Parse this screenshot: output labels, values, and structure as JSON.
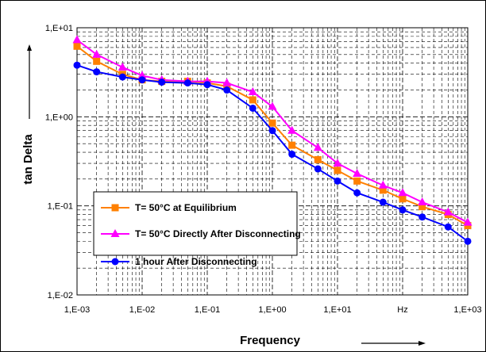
{
  "chart_data": {
    "type": "line",
    "xlabel": "Frequency",
    "ylabel": "tan Delta",
    "x_scale": "log",
    "y_scale": "log",
    "xlim": [
      0.001,
      1000
    ],
    "ylim": [
      0.01,
      10
    ],
    "x_tick_labels": [
      "1,E-03",
      "1,E-02",
      "1,E-01",
      "1,E+00",
      "1,E+01",
      "Hz",
      "1,E+03"
    ],
    "y_tick_labels": [
      "1,E+01",
      "1,E+00",
      "1,E-01",
      "1,E-02"
    ],
    "grid": true,
    "legend_position": "bottom-left",
    "x": [
      0.001,
      0.002,
      0.005,
      0.01,
      0.02,
      0.05,
      0.1,
      0.2,
      0.5,
      1,
      2,
      5,
      10,
      20,
      50,
      100,
      200,
      500,
      1000
    ],
    "series": [
      {
        "name": "T= 50°C at Equilibrium",
        "color": "#FF8000",
        "marker": "square",
        "values": [
          6.2,
          4.2,
          3.0,
          2.6,
          2.5,
          2.5,
          2.4,
          2.2,
          1.55,
          0.85,
          0.48,
          0.33,
          0.25,
          0.19,
          0.15,
          0.12,
          0.098,
          0.08,
          0.06
        ]
      },
      {
        "name": "T= 50°C Directly After Disconnecting",
        "color": "#FF00FF",
        "marker": "triangle",
        "values": [
          7.3,
          5.0,
          3.6,
          2.9,
          2.6,
          2.5,
          2.5,
          2.4,
          1.9,
          1.3,
          0.7,
          0.45,
          0.3,
          0.23,
          0.17,
          0.14,
          0.11,
          0.085,
          0.065
        ]
      },
      {
        "name": "1 hour After Disconnecting",
        "color": "#0000FF",
        "marker": "circle",
        "values": [
          3.8,
          3.2,
          2.8,
          2.6,
          2.45,
          2.4,
          2.3,
          2.0,
          1.25,
          0.7,
          0.38,
          0.26,
          0.19,
          0.14,
          0.11,
          0.09,
          0.075,
          0.058,
          0.04
        ]
      }
    ],
    "arrow_labels": {
      "x_arrow": "→",
      "y_arrow": "↑"
    }
  }
}
